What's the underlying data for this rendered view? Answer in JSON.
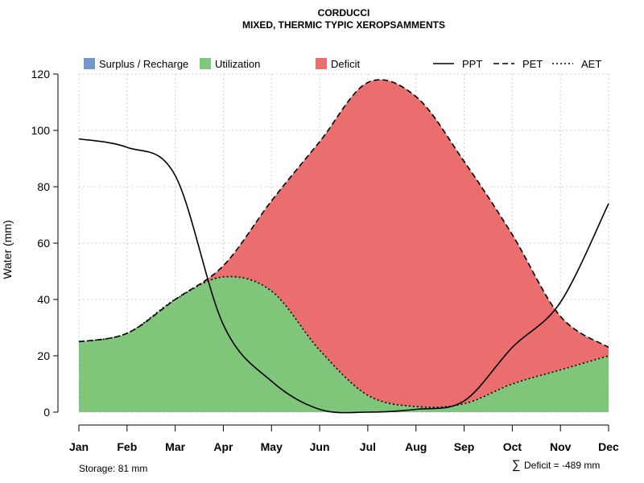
{
  "chart_data": {
    "type": "area",
    "title": "CORDUCCI",
    "subtitle": "MIXED, THERMIC TYPIC XEROPSAMMENTS",
    "ylabel": "Water (mm)",
    "xlabel": "",
    "ylim": [
      0,
      120
    ],
    "yticks": [
      0,
      20,
      40,
      60,
      80,
      100,
      120
    ],
    "categories": [
      "Jan",
      "Feb",
      "Mar",
      "Apr",
      "May",
      "Jun",
      "Jul",
      "Aug",
      "Sep",
      "Oct",
      "Nov",
      "Dec"
    ],
    "series": [
      {
        "name": "PPT",
        "style": "solid",
        "values": [
          97,
          94,
          84,
          31,
          11,
          1,
          0,
          1,
          4,
          23,
          39,
          74
        ]
      },
      {
        "name": "PET",
        "style": "dashed",
        "values": [
          25,
          28,
          40,
          52,
          75,
          96,
          117,
          112,
          89,
          63,
          34,
          23
        ]
      },
      {
        "name": "AET",
        "style": "dotted",
        "values": [
          25,
          28,
          40,
          48,
          43,
          22,
          6,
          2,
          3,
          10,
          15,
          20
        ]
      }
    ],
    "fill_legend": [
      {
        "name": "Surplus / Recharge",
        "color": "#7199C9"
      },
      {
        "name": "Utilization",
        "color": "#7FC67B"
      },
      {
        "name": "Deficit",
        "color": "#EB6E6E"
      }
    ],
    "line_legend": [
      "PPT",
      "PET",
      "AET"
    ],
    "legend_position": "top",
    "grid": true
  },
  "notes": {
    "storage": "Storage: 81 mm",
    "deficit_symbol": "∑",
    "deficit": "Deficit = -489 mm"
  }
}
